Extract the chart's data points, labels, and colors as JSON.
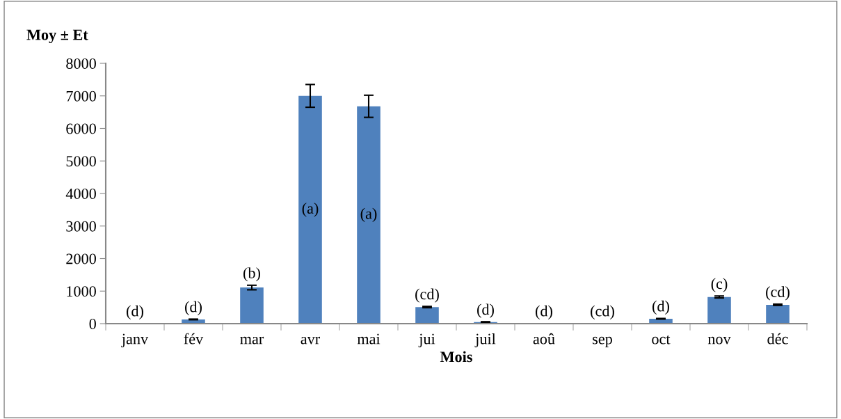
{
  "chart_data": {
    "type": "bar",
    "xlabel": "Mois",
    "ylabel": "Moy ± Et",
    "categories": [
      "janv",
      "fév",
      "mar",
      "avr",
      "mai",
      "jui",
      "juil",
      "aoû",
      "sep",
      "oct",
      "nov",
      "déc"
    ],
    "values": [
      10,
      130,
      1110,
      7000,
      6680,
      510,
      50,
      10,
      10,
      150,
      820,
      580
    ],
    "value_labels": [
      "(d)",
      "(d)",
      "(b)",
      "(a)",
      "(a)",
      "(cd)",
      "(d)",
      "(d)",
      "(cd)",
      "(d)",
      "(c)",
      "(cd)"
    ],
    "errors": [
      null,
      10,
      70,
      350,
      340,
      20,
      10,
      null,
      null,
      10,
      30,
      20
    ],
    "color": "#4f81bd",
    "ylim": [
      0,
      8000
    ],
    "yticks": [
      0,
      1000,
      2000,
      3000,
      4000,
      5000,
      6000,
      7000,
      8000
    ],
    "grid": false,
    "legend": false
  }
}
